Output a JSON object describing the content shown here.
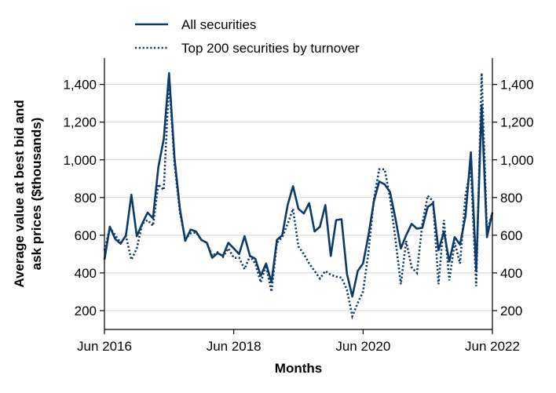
{
  "chart_data": {
    "type": "line",
    "xlabel": "Months",
    "ylabel_line1": "Average value at best bid and",
    "ylabel_line2": "ask prices ($thousands)",
    "x_ticks": [
      "Jun 2016",
      "Jun 2018",
      "Jun 2020",
      "Jun 2022"
    ],
    "x_range": [
      "2016-06",
      "2022-06"
    ],
    "ylim": [
      100,
      1540
    ],
    "y_ticks": [
      200,
      400,
      600,
      800,
      1000,
      1200,
      1400
    ],
    "y_tick_labels": [
      "200",
      "400",
      "600",
      "800",
      "1,000",
      "1,200",
      "1,400"
    ],
    "gridlines": "horizontal",
    "legend_position": "top-left, above plot",
    "line_color": "#0b3a6b",
    "series": [
      {
        "name": "All securities",
        "style": "solid",
        "values": [
          470,
          645,
          580,
          555,
          600,
          815,
          595,
          660,
          720,
          690,
          960,
          1110,
          1460,
          1010,
          740,
          570,
          630,
          620,
          575,
          560,
          480,
          505,
          490,
          560,
          530,
          500,
          595,
          490,
          475,
          385,
          450,
          350,
          575,
          600,
          760,
          860,
          740,
          715,
          770,
          620,
          645,
          760,
          490,
          680,
          685,
          395,
          275,
          410,
          450,
          600,
          780,
          885,
          870,
          830,
          690,
          530,
          600,
          660,
          635,
          640,
          750,
          770,
          520,
          620,
          460,
          590,
          550,
          700,
          1040,
          415,
          1290,
          590,
          720
        ]
      },
      {
        "name": "Top 200 securities by turnover",
        "style": "dotted",
        "values": [
          520,
          640,
          600,
          560,
          595,
          470,
          530,
          660,
          680,
          650,
          870,
          840,
          1420,
          980,
          720,
          580,
          610,
          615,
          575,
          560,
          490,
          510,
          485,
          530,
          480,
          480,
          420,
          490,
          450,
          350,
          440,
          300,
          560,
          590,
          660,
          740,
          540,
          500,
          450,
          410,
          370,
          410,
          390,
          380,
          375,
          310,
          170,
          240,
          300,
          510,
          790,
          950,
          950,
          800,
          580,
          340,
          570,
          430,
          400,
          660,
          810,
          780,
          340,
          680,
          360,
          560,
          450,
          810,
          960,
          330,
          1460,
          620,
          720
        ]
      }
    ]
  }
}
